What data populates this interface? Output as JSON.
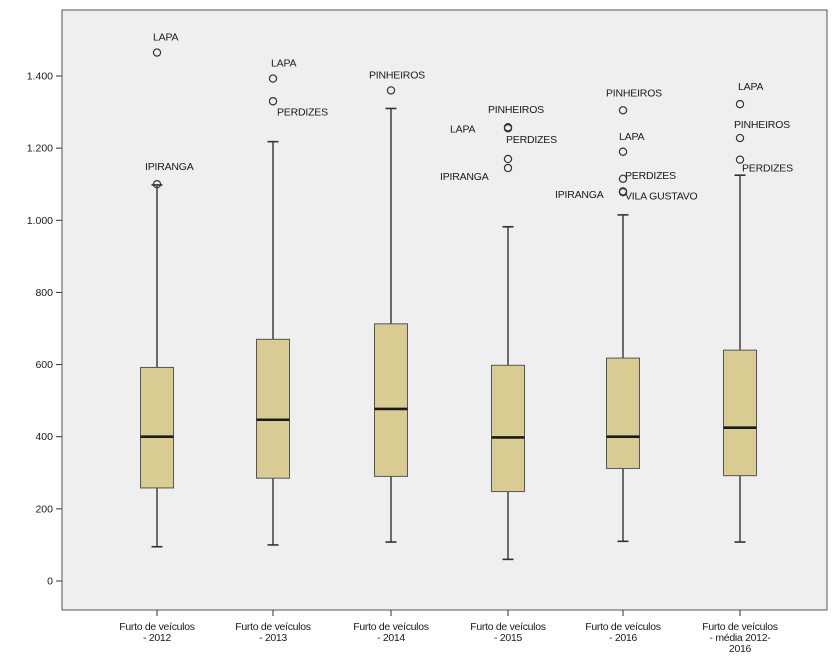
{
  "chart_data": {
    "type": "boxplot",
    "title": "",
    "xlabel": "",
    "ylabel": "",
    "ylim": [
      -80,
      1590
    ],
    "yticks": [
      0,
      200,
      400,
      600,
      800,
      1000,
      1200,
      1400
    ],
    "ytick_labels": [
      "0",
      "200",
      "400",
      "600",
      "800",
      "1.000",
      "1.200",
      "1.400"
    ],
    "grid": false,
    "legend": "none",
    "colors": {
      "plot_background": "#efefef",
      "box_fill": "#d9cc92",
      "box_edge": "#555555",
      "median": "#1a1a1a",
      "whisker": "#333333",
      "frame": "#555555"
    },
    "boxes": [
      {
        "label": [
          "Furto de veículos",
          "- 2012"
        ],
        "min": 95,
        "q1": 258,
        "median": 400,
        "q3": 592,
        "max": 1098,
        "outliers": [
          {
            "value": 1465,
            "label": "LAPA"
          },
          {
            "value": 1100,
            "label": "IPIRANGA"
          }
        ]
      },
      {
        "label": [
          "Furto de veículos",
          "- 2013"
        ],
        "min": 100,
        "q1": 285,
        "median": 447,
        "q3": 670,
        "max": 1218,
        "outliers": [
          {
            "value": 1393,
            "label": "LAPA"
          },
          {
            "value": 1330,
            "label": "PERDIZES"
          }
        ]
      },
      {
        "label": [
          "Furto de veículos",
          "- 2014"
        ],
        "min": 108,
        "q1": 290,
        "median": 477,
        "q3": 713,
        "max": 1310,
        "outliers": [
          {
            "value": 1360,
            "label": "PINHEIROS"
          }
        ]
      },
      {
        "label": [
          "Furto de veículos",
          "- 2015"
        ],
        "min": 60,
        "q1": 248,
        "median": 398,
        "q3": 598,
        "max": 982,
        "outliers": [
          {
            "value": 1258,
            "label": "PINHEIROS"
          },
          {
            "value": 1255,
            "label": "LAPA"
          },
          {
            "value": 1170,
            "label": "PERDIZES"
          },
          {
            "value": 1145,
            "label": "IPIRANGA"
          }
        ]
      },
      {
        "label": [
          "Furto de veículos",
          "- 2016"
        ],
        "min": 110,
        "q1": 312,
        "median": 400,
        "q3": 618,
        "max": 1015,
        "outliers": [
          {
            "value": 1305,
            "label": "PINHEIROS"
          },
          {
            "value": 1190,
            "label": "LAPA"
          },
          {
            "value": 1115,
            "label": "PERDIZES"
          },
          {
            "value": 1080,
            "label": "VILA GUSTAVO"
          },
          {
            "value": 1078,
            "label": "IPIRANGA"
          }
        ]
      },
      {
        "label": [
          "Furto de veículos",
          "- média 2012-",
          "2016"
        ],
        "min": 108,
        "q1": 292,
        "median": 425,
        "q3": 640,
        "max": 1125,
        "outliers": [
          {
            "value": 1322,
            "label": "LAPA"
          },
          {
            "value": 1228,
            "label": "PINHEIROS"
          },
          {
            "value": 1168,
            "label": "PERDIZES"
          }
        ]
      }
    ]
  }
}
